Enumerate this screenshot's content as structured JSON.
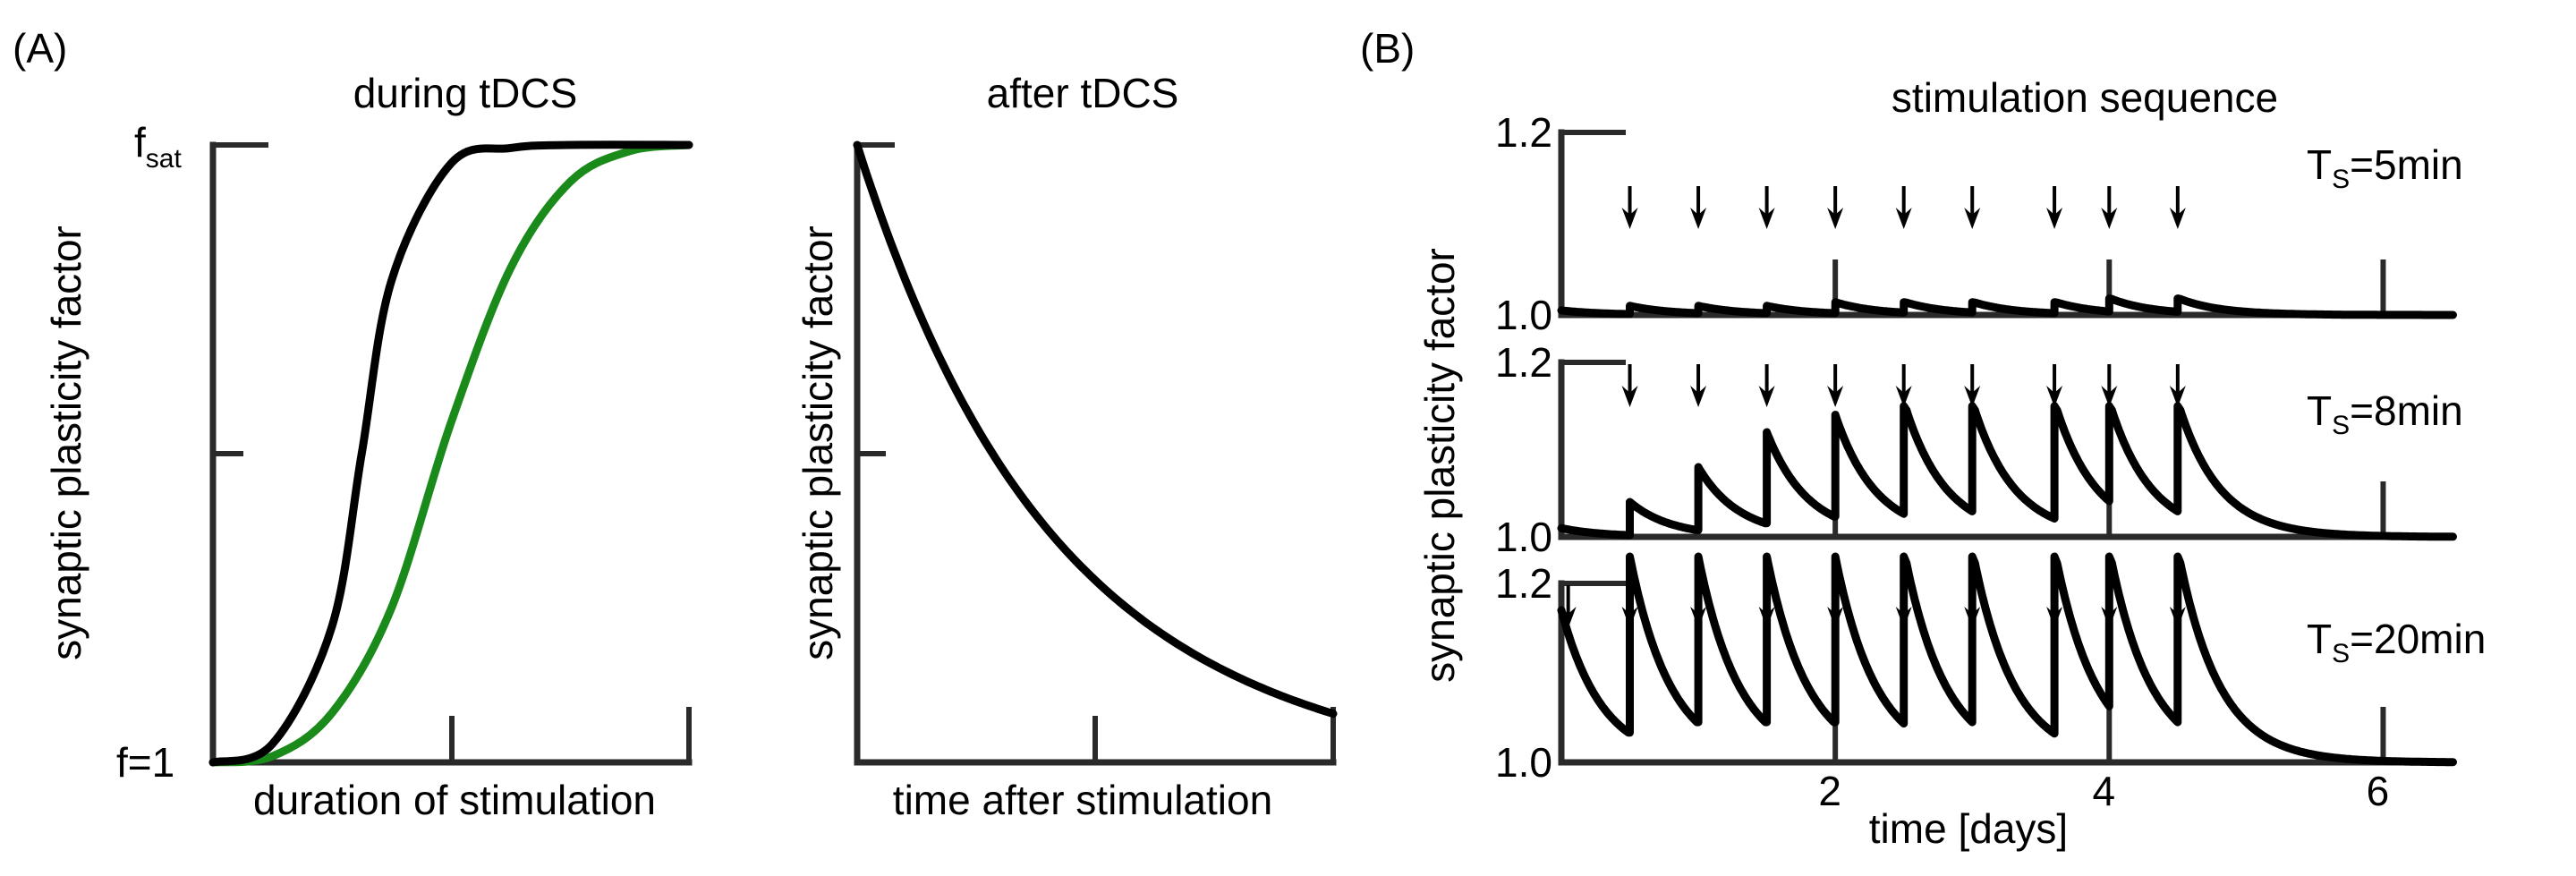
{
  "panel_a": {
    "label": "(A)",
    "left": {
      "title": "during tDCS",
      "ylabel": "synaptic plasticity factor",
      "xlabel": "duration of stimulation",
      "y_top_label": "f",
      "y_top_sub": "sat",
      "y_bottom_label": "f=1"
    },
    "right": {
      "title": "after tDCS",
      "ylabel": "synaptic plasticity factor",
      "xlabel": "time after stimulation"
    }
  },
  "panel_b": {
    "label": "(B)",
    "title": "stimulation sequence",
    "ylabel": "synaptic plasticity factor",
    "xlabel": "time [days]",
    "rows": [
      {
        "ts_prefix": "T",
        "ts_sub": "S",
        "ts_value": "=5min",
        "y_top": "1.2",
        "y_bottom": "1.0"
      },
      {
        "ts_prefix": "T",
        "ts_sub": "S",
        "ts_value": "=8min",
        "y_top": "1.2",
        "y_bottom": "1.0"
      },
      {
        "ts_prefix": "T",
        "ts_sub": "S",
        "ts_value": "=20min",
        "y_top": "1.2",
        "y_bottom": "1.0"
      }
    ],
    "x_ticks": [
      "2",
      "4",
      "6"
    ]
  },
  "chart_data": [
    {
      "type": "line",
      "title": "during tDCS",
      "xlabel": "duration of stimulation",
      "ylabel": "synaptic plasticity factor",
      "y_ticks": [
        "f=1",
        "f_sat"
      ],
      "series": [
        {
          "color": "#000000",
          "x": [
            0,
            0.5,
            1,
            1.25,
            1.5,
            2,
            2.5,
            3,
            4
          ],
          "y": [
            0,
            0.03,
            0.22,
            0.5,
            0.78,
            0.97,
            0.995,
            1,
            1
          ]
        },
        {
          "color": "#1a8a1a",
          "x": [
            0,
            0.5,
            1,
            1.5,
            2,
            2.5,
            3,
            3.5,
            4
          ],
          "y": [
            0,
            0.01,
            0.08,
            0.25,
            0.55,
            0.8,
            0.94,
            0.99,
            1
          ]
        }
      ]
    },
    {
      "type": "line",
      "title": "after tDCS",
      "xlabel": "time after stimulation",
      "ylabel": "synaptic plasticity factor",
      "series": [
        {
          "color": "#000000",
          "x": [
            0,
            0.5,
            1,
            1.5,
            2
          ],
          "y": [
            1,
            0.55,
            0.3,
            0.15,
            0.07
          ]
        }
      ]
    },
    {
      "type": "line",
      "title": "stimulation sequence",
      "xlabel": "time [days]",
      "ylabel": "synaptic plasticity factor",
      "xlim": [
        0,
        6.5
      ],
      "ylim": [
        1.0,
        1.2
      ],
      "x_ticks": [
        2,
        4,
        6
      ],
      "stimulation_times_days": [
        0.5,
        1.0,
        1.5,
        2.0,
        2.5,
        3.0,
        3.6,
        4.0,
        4.5
      ],
      "series": [
        {
          "name": "T_S=5min",
          "peak": 1.01,
          "decay_tau_days": 0.3
        },
        {
          "name": "T_S=8min",
          "peak_values": [
            1.04,
            1.08,
            1.12,
            1.14,
            1.15,
            1.15,
            1.15,
            1.15,
            1.15
          ],
          "start": 1.01,
          "decay_tau_days": 0.3
        },
        {
          "name": "T_S=20min",
          "peak": 1.23,
          "trough": 1.05,
          "start": 1.17,
          "decay_tau_days": 0.3
        }
      ]
    }
  ]
}
